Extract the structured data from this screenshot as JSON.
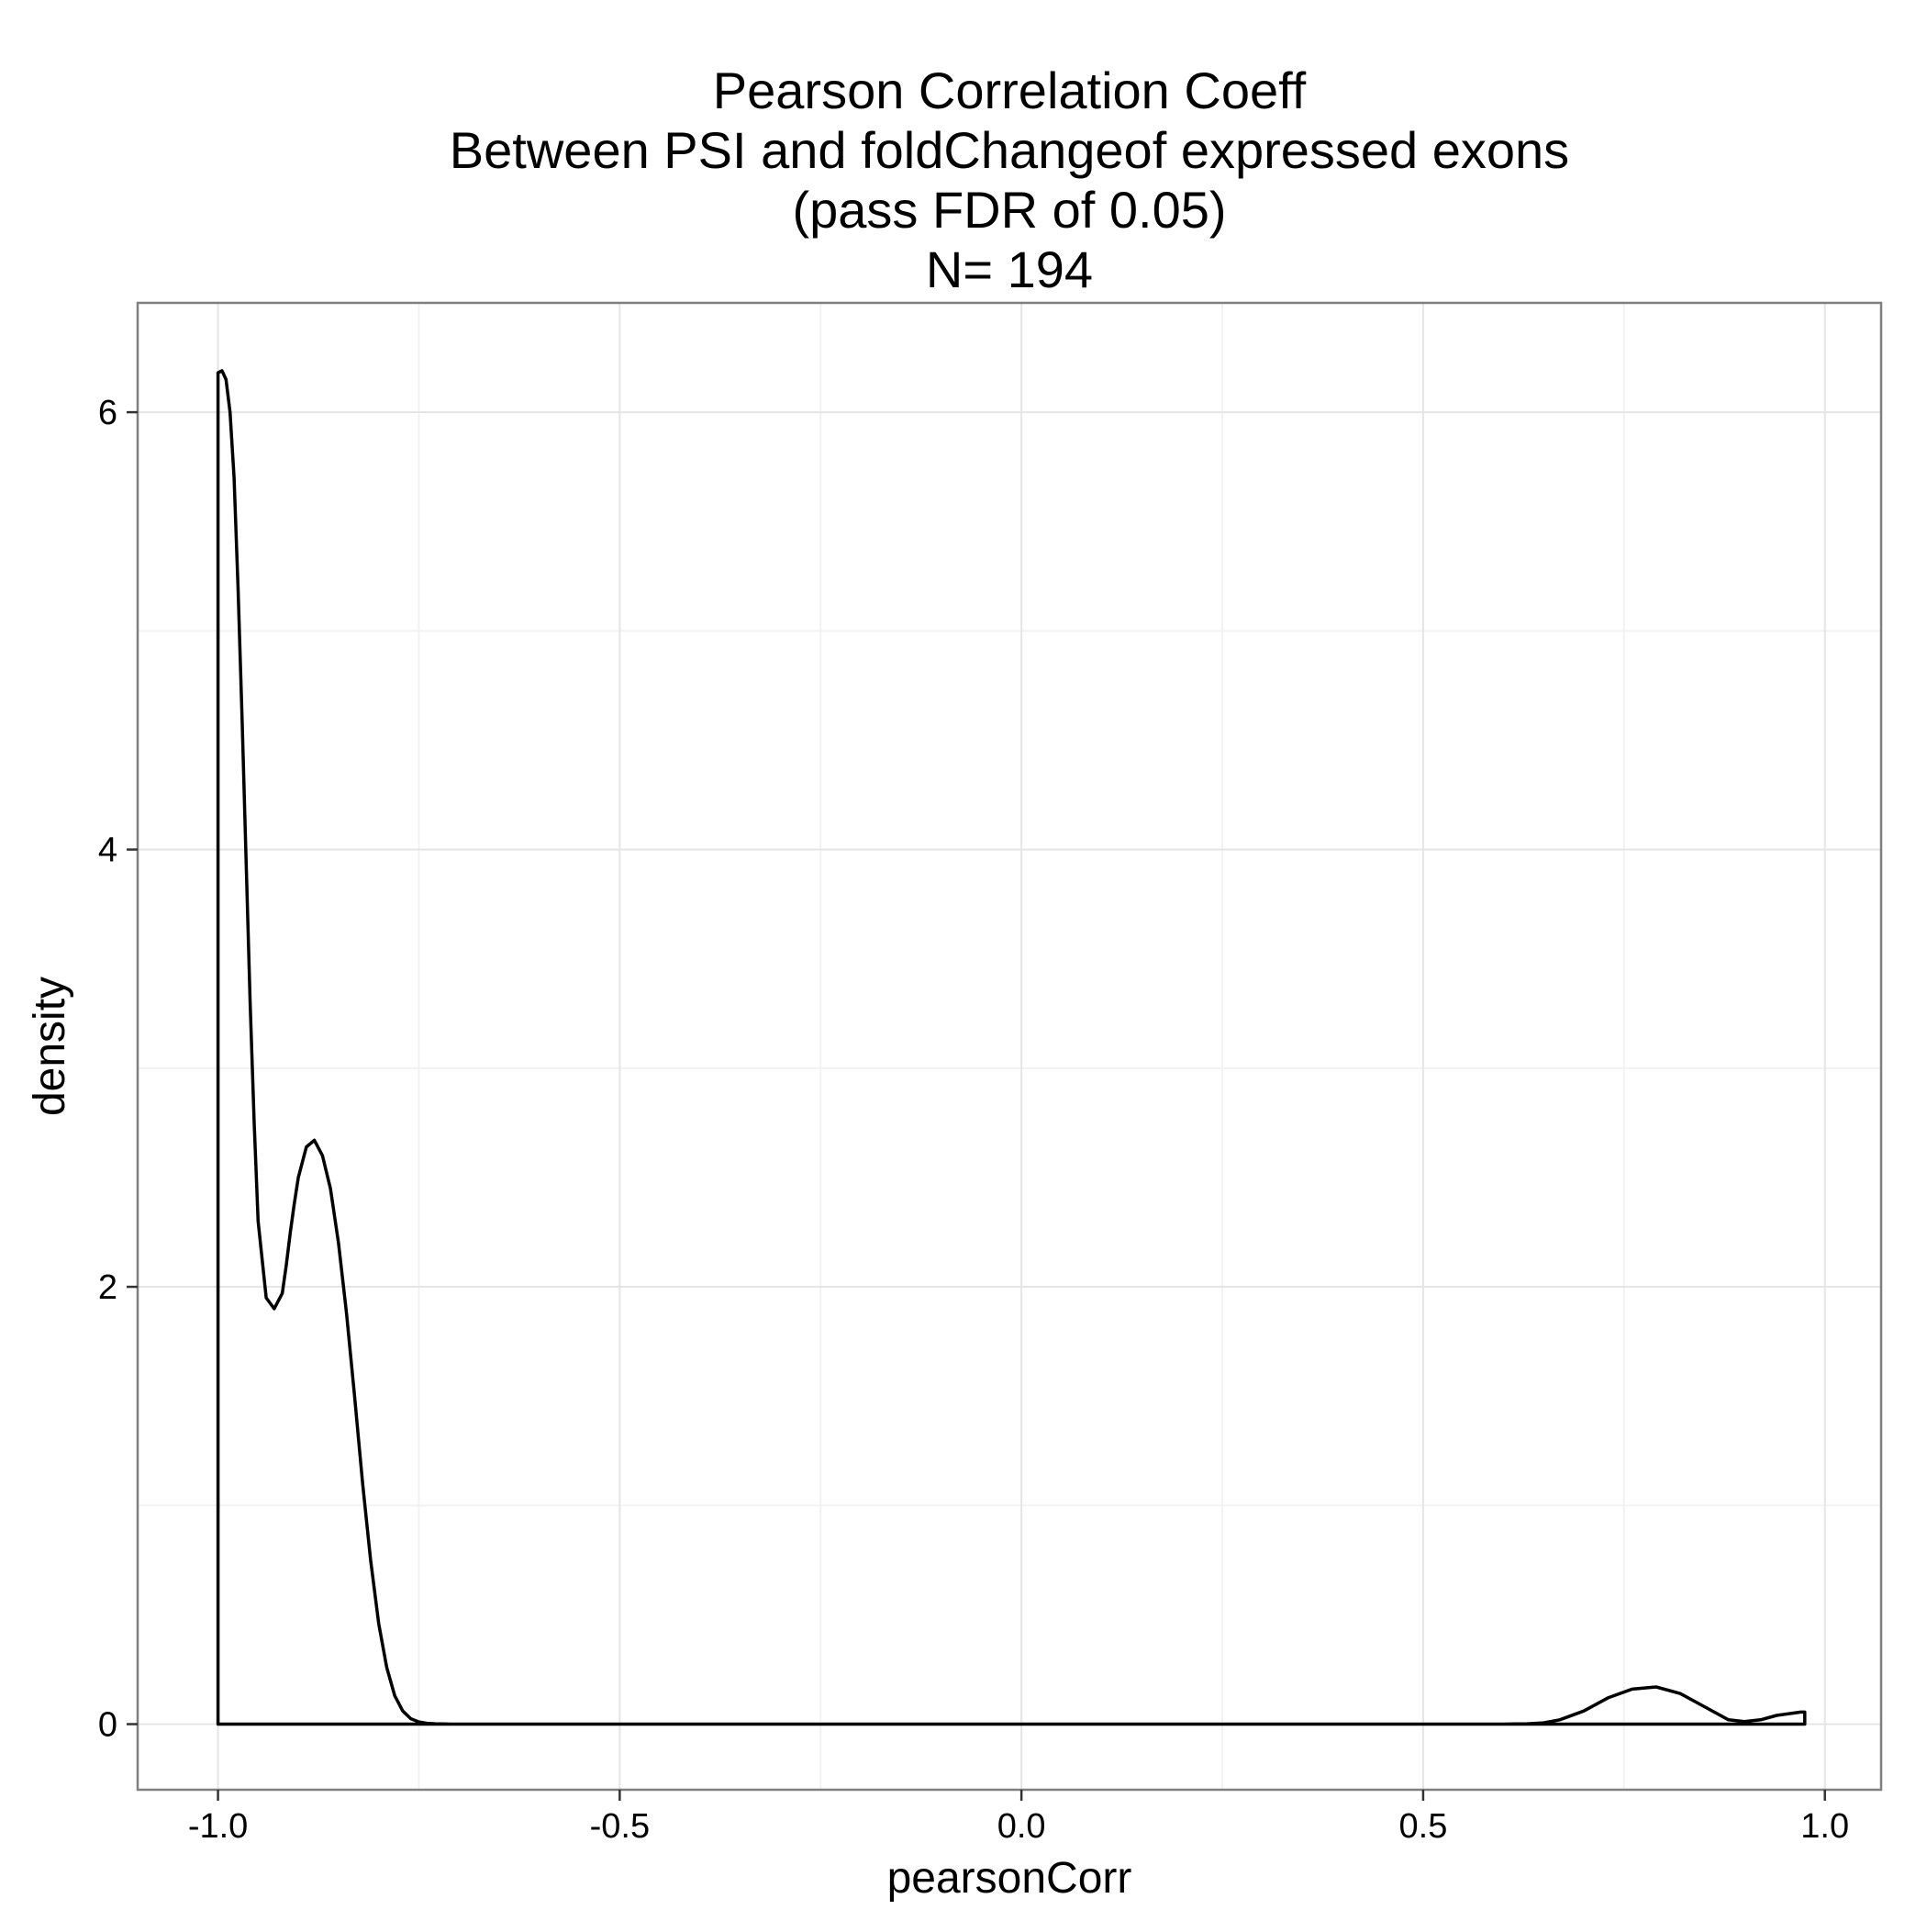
{
  "chart_data": {
    "type": "area",
    "title_lines": [
      "Pearson Correlation Coeff",
      "Between PSI and foldChangeof expressed exons",
      "(pass FDR of 0.05)",
      "N= 194"
    ],
    "xlabel": "pearsonCorr",
    "ylabel": "density",
    "xlim": [
      -1.1,
      1.07
    ],
    "ylim": [
      -0.3,
      6.5
    ],
    "x_ticks": [
      {
        "value": -1.0,
        "label": "-1.0"
      },
      {
        "value": -0.5,
        "label": "-0.5"
      },
      {
        "value": 0.0,
        "label": "0.0"
      },
      {
        "value": 0.5,
        "label": "0.5"
      },
      {
        "value": 1.0,
        "label": "1.0"
      }
    ],
    "y_ticks": [
      {
        "value": 0,
        "label": "0"
      },
      {
        "value": 2,
        "label": "2"
      },
      {
        "value": 4,
        "label": "4"
      },
      {
        "value": 6,
        "label": "6"
      }
    ],
    "grid": true,
    "series": [
      {
        "x": [
          -1.0,
          -0.995,
          -0.99,
          -0.985,
          -0.98,
          -0.975,
          -0.97,
          -0.965,
          -0.96,
          -0.955,
          -0.95,
          -0.94,
          -0.93,
          -0.92,
          -0.915,
          -0.91,
          -0.905,
          -0.9,
          -0.89,
          -0.88,
          -0.87,
          -0.86,
          -0.85,
          -0.84,
          -0.83,
          -0.82,
          -0.81,
          -0.8,
          -0.79,
          -0.78,
          -0.77,
          -0.76,
          -0.75,
          -0.74,
          -0.73,
          -0.72,
          -0.71,
          -0.7,
          -0.68,
          -0.66,
          -0.64,
          -0.6,
          -0.4,
          0.0,
          0.4,
          0.6,
          0.63,
          0.65,
          0.67,
          0.7,
          0.73,
          0.76,
          0.79,
          0.82,
          0.85,
          0.88,
          0.9,
          0.92,
          0.94,
          0.97,
          0.975
        ],
        "y": [
          6.18,
          6.19,
          6.15,
          6.0,
          5.7,
          5.2,
          4.6,
          3.95,
          3.3,
          2.75,
          2.3,
          1.95,
          1.9,
          1.97,
          2.1,
          2.25,
          2.38,
          2.5,
          2.64,
          2.67,
          2.6,
          2.45,
          2.2,
          1.88,
          1.5,
          1.1,
          0.75,
          0.46,
          0.26,
          0.13,
          0.06,
          0.025,
          0.01,
          0.004,
          0.002,
          0.001,
          0.0,
          0.0,
          0.0,
          0.0,
          0.0,
          0.0,
          0.0,
          0.0,
          0.0,
          0.0,
          0.002,
          0.006,
          0.02,
          0.06,
          0.12,
          0.16,
          0.17,
          0.14,
          0.08,
          0.02,
          0.012,
          0.02,
          0.04,
          0.055,
          0.055
        ]
      }
    ],
    "colors": {
      "panel_background": "#ffffff",
      "grid_major": "#e5e5e5",
      "grid_minor": "#f2f2f2",
      "panel_border": "#7f7f7f",
      "line": "#000000"
    }
  }
}
